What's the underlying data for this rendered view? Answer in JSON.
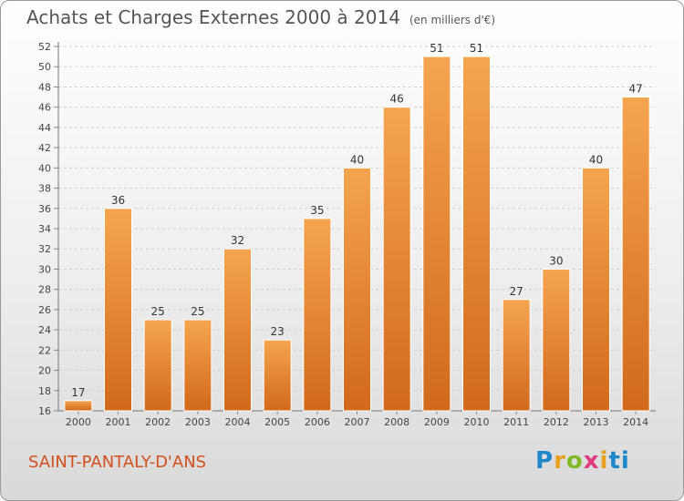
{
  "title": "Achats et Charges Externes 2000 à 2014",
  "subtitle": "(en milliers d'€)",
  "commune": "SAINT-PANTALY-D'ANS",
  "logo": {
    "text": "Proxiti",
    "letters": [
      "P",
      "r",
      "o",
      "x",
      "i",
      "ti"
    ]
  },
  "colors": {
    "bar_top": "#f5a54f",
    "bar_bottom": "#d2691b",
    "commune": "#d2501e",
    "frame": "#9a9a9a"
  },
  "chart_data": {
    "type": "bar",
    "categories": [
      "2000",
      "2001",
      "2002",
      "2003",
      "2004",
      "2005",
      "2006",
      "2007",
      "2008",
      "2009",
      "2010",
      "2011",
      "2012",
      "2013",
      "2014"
    ],
    "values": [
      17,
      36,
      25,
      25,
      32,
      23,
      35,
      40,
      46,
      51,
      51,
      27,
      30,
      40,
      47
    ],
    "ylim": [
      16,
      52
    ],
    "yticks": [
      16,
      18,
      20,
      22,
      24,
      26,
      28,
      30,
      32,
      34,
      36,
      38,
      40,
      42,
      44,
      46,
      48,
      50,
      52
    ],
    "grid": "horizontal-dashed",
    "data_labels": true
  }
}
